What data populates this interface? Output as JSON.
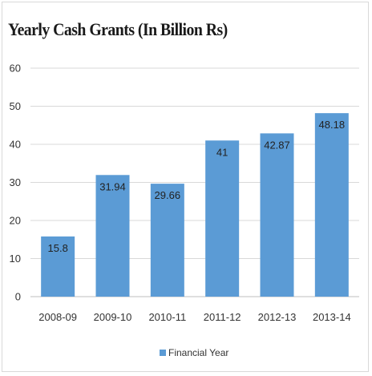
{
  "chart_data": {
    "type": "bar",
    "title": "Yearly Cash Grants (In Billion Rs)",
    "categories": [
      "2008-09",
      "2009-10",
      "2010-11",
      "2011-12",
      "2012-13",
      "2013-14"
    ],
    "series": [
      {
        "name": "Financial Year",
        "values": [
          15.8,
          31.94,
          29.66,
          41,
          42.87,
          48.18
        ]
      }
    ],
    "data_labels": [
      "15.8",
      "31.94",
      "29.66",
      "41",
      "42.87",
      "48.18"
    ],
    "y_ticks": [
      "0",
      "10",
      "20",
      "30",
      "40",
      "50",
      "60"
    ],
    "ylim": [
      0,
      60
    ],
    "xlabel": "",
    "ylabel": "",
    "grid": true,
    "legend_position": "bottom",
    "colors": {
      "bar": "#5b9bd5",
      "grid": "#d9d9d9",
      "axis": "#bfbfbf"
    }
  }
}
